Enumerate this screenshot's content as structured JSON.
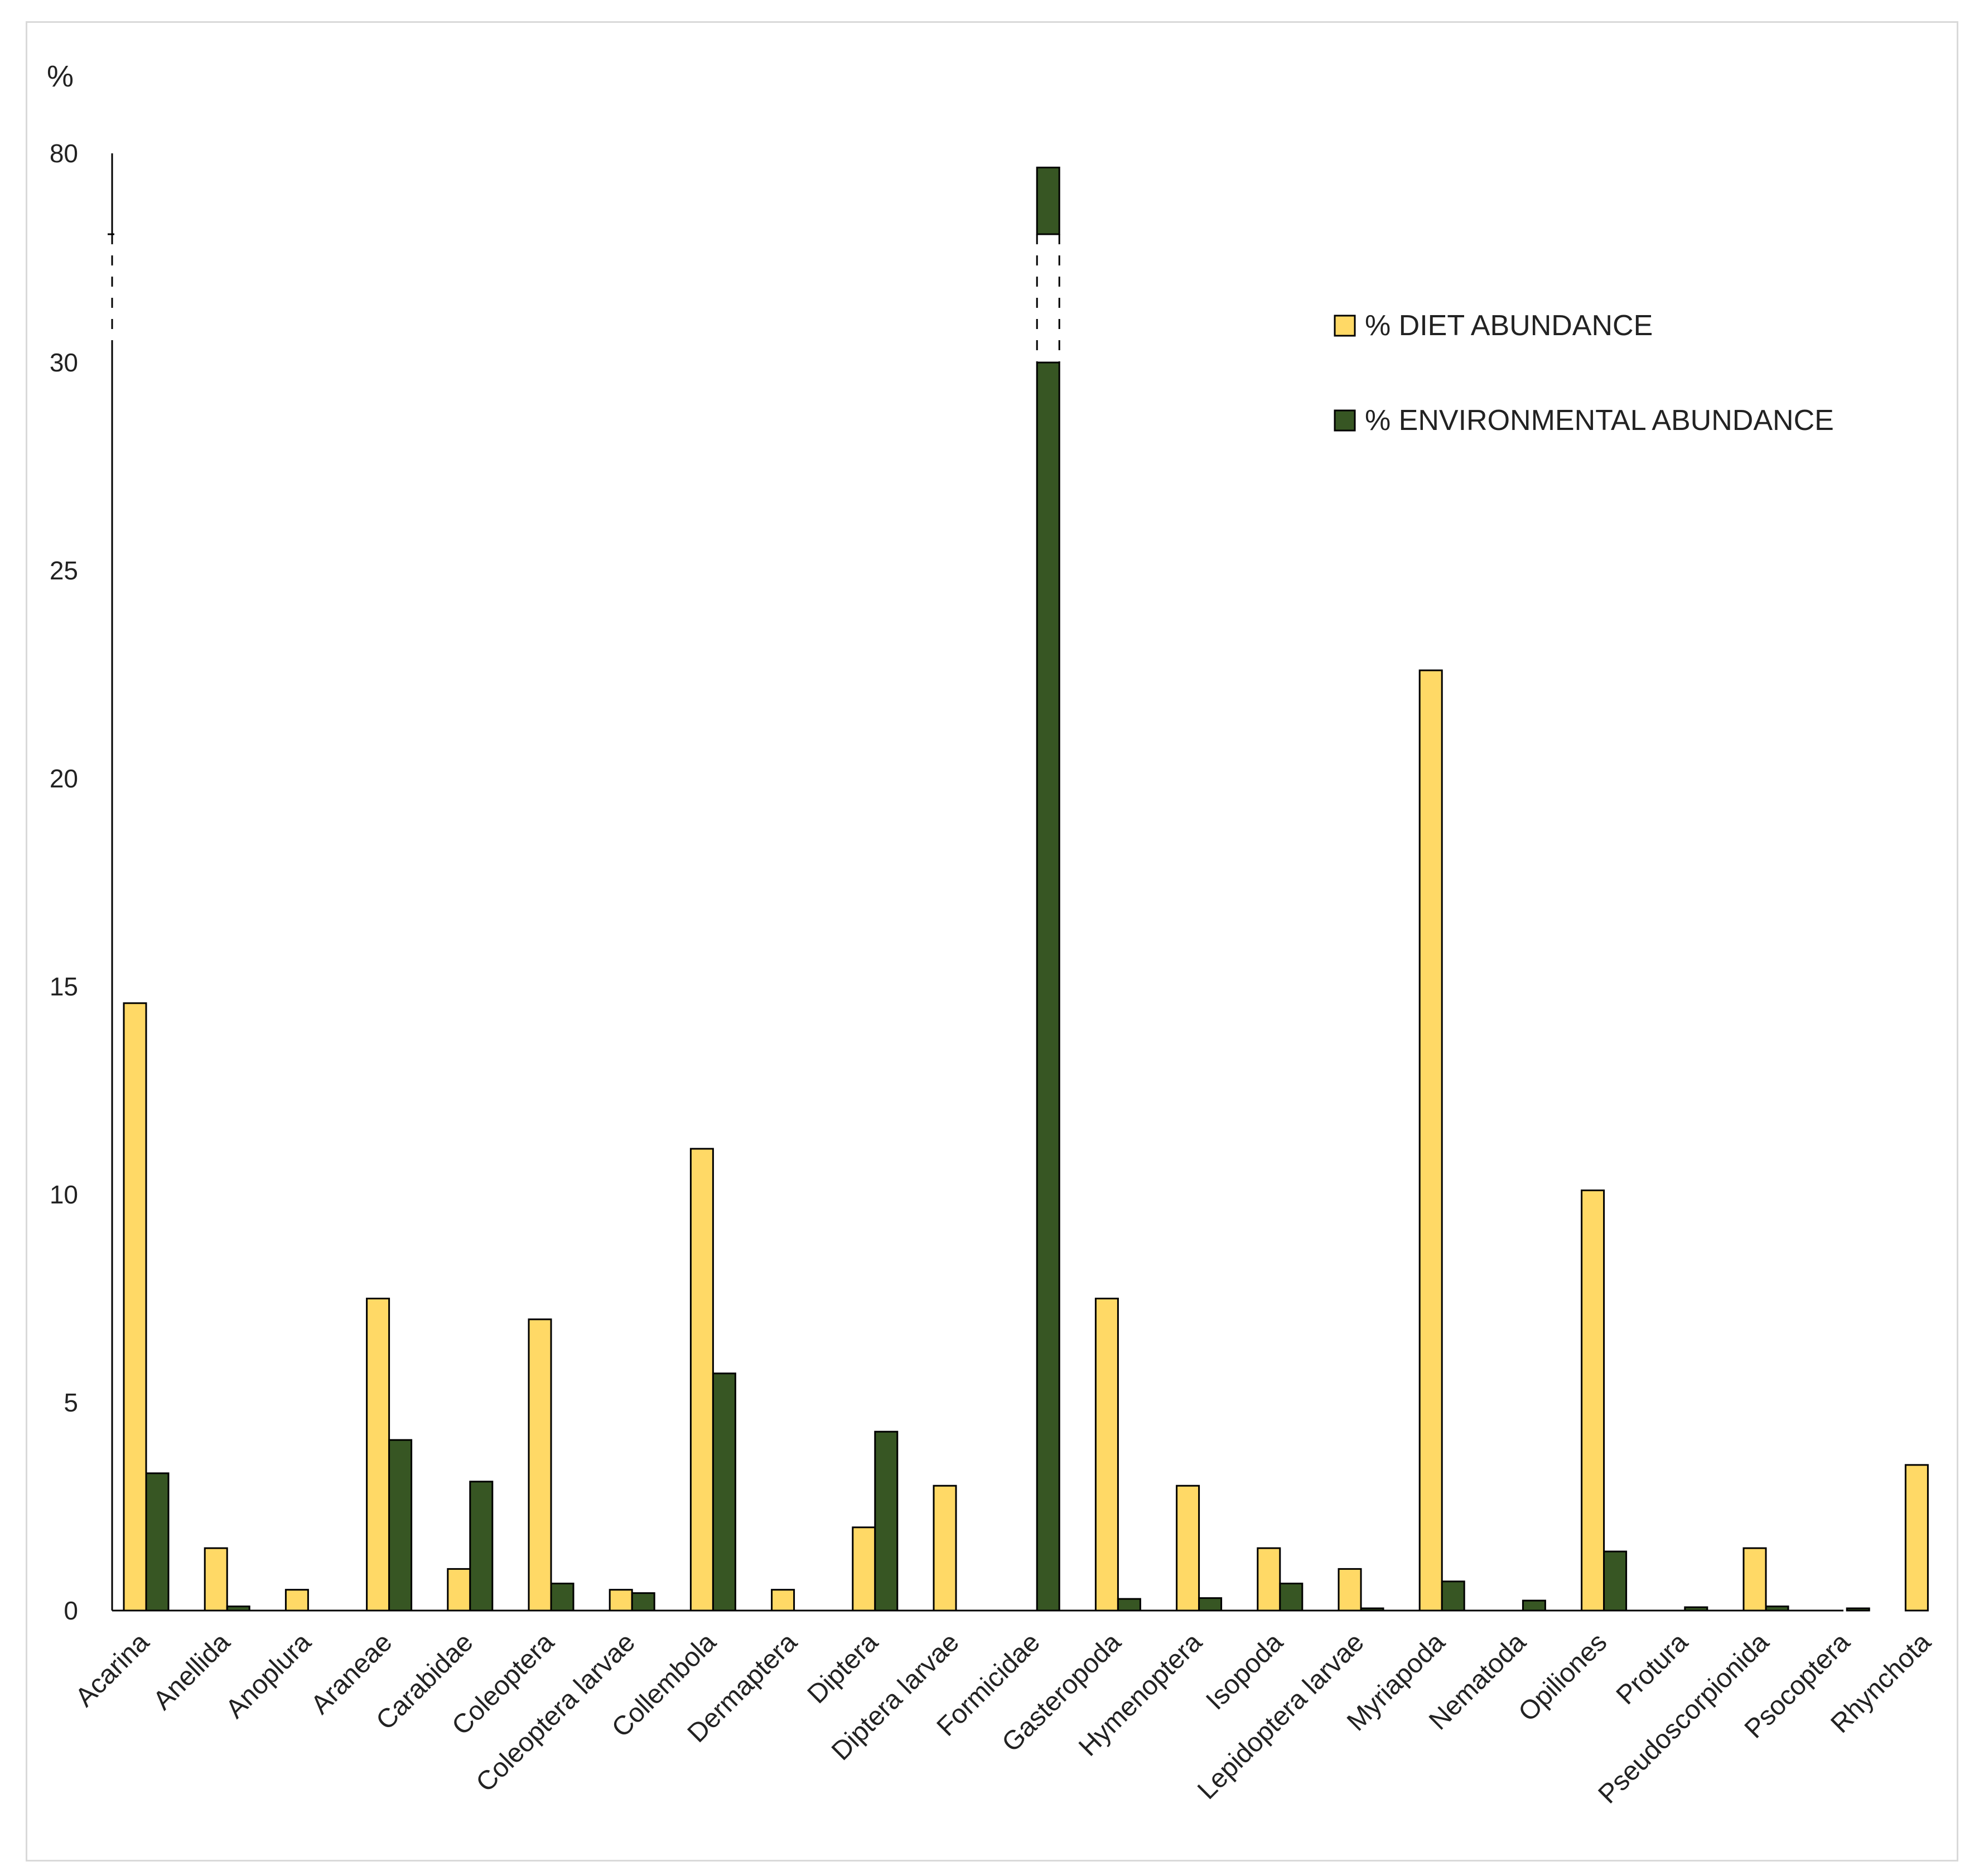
{
  "chart_data": {
    "type": "bar",
    "title": "",
    "ylabel": "%",
    "xlabel": "",
    "ylim": [
      0,
      80
    ],
    "axis_break": {
      "lower": 30,
      "upper": 80
    },
    "y_ticks": [
      "0",
      "5",
      "10",
      "15",
      "20",
      "25",
      "30",
      "80"
    ],
    "legend_position": "top-right",
    "categories": [
      "Acarina",
      "Anellida",
      "Anoplura",
      "Araneae",
      "Carabidae",
      "Coleoptera",
      "Coleoptera larvae",
      "Collembola",
      "Dermaptera",
      "Diptera",
      "Diptera larvae",
      "Formicidae",
      "Gasteropoda",
      "Hymenoptera",
      "Isopoda",
      "Lepidoptera larvae",
      "Myriapoda",
      "Nematoda",
      "Opiliones",
      "Protura",
      "Pseudoscorpionida",
      "Psocoptera",
      "Rhynchota"
    ],
    "series": [
      {
        "name": "% DIET ABUNDANCE",
        "color": "#ffd966",
        "values": [
          14.6,
          1.5,
          0.5,
          7.5,
          1.0,
          7.0,
          0.5,
          11.1,
          0.5,
          2.0,
          3.0,
          0,
          7.5,
          3.0,
          1.5,
          1.0,
          22.6,
          0,
          10.1,
          0,
          1.5,
          0,
          3.5
        ]
      },
      {
        "name": "% ENVIRONMENTAL ABUNDANCE",
        "color": "#375623",
        "values": [
          3.3,
          0.1,
          0,
          4.1,
          3.1,
          0.65,
          0.42,
          5.7,
          0,
          4.3,
          0,
          79.3,
          0.28,
          0.3,
          0.65,
          0.05,
          0.7,
          0.24,
          1.42,
          0.08,
          0.1,
          0.04,
          0
        ]
      }
    ]
  }
}
